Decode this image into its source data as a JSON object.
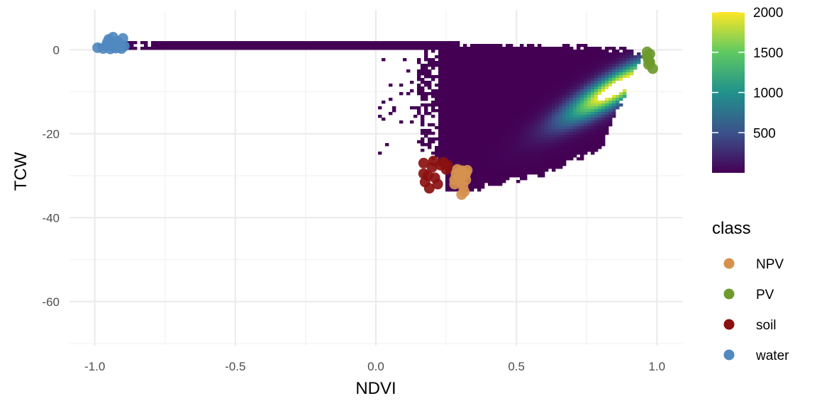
{
  "chart_data": {
    "type": "scatter",
    "title": "",
    "xlabel": "NDVI",
    "ylabel": "TCW",
    "xlim": [
      -1.09,
      1.09
    ],
    "ylim": [
      -70.5,
      9.5
    ],
    "x_ticks": [
      -1.0,
      -0.5,
      0.0,
      0.5,
      1.0
    ],
    "x_tick_labels": [
      "-1.0",
      "-0.5",
      "0.0",
      "0.5",
      "1.0"
    ],
    "y_ticks": [
      0,
      -20,
      -40,
      -60
    ],
    "y_tick_labels": [
      "0",
      "-20",
      "-40",
      "-60"
    ],
    "grid": true,
    "background_density": {
      "type": "heatmap",
      "description_colorscale": "viridis",
      "count_range": [
        1,
        2000
      ],
      "colorbar_ticks": [
        500,
        1000,
        1500,
        2000
      ],
      "colorbar_tick_labels": [
        "500",
        "1000",
        "1500",
        "2000"
      ],
      "stops": [
        "#440154",
        "#3b528b",
        "#21918c",
        "#5ec962",
        "#fde725"
      ],
      "overflow_color": "#ffffff"
    },
    "legend": {
      "title": "class",
      "placement": "right",
      "entries": [
        {
          "name": "NPV",
          "color": "#d6914f"
        },
        {
          "name": "PV",
          "color": "#6e9a2e"
        },
        {
          "name": "soil",
          "color": "#8b1010"
        },
        {
          "name": "water",
          "color": "#5088c0"
        }
      ]
    },
    "series": [
      {
        "name": "water",
        "color": "#5088c0",
        "points": [
          [
            -0.99,
            0.5
          ],
          [
            -0.97,
            0.3
          ],
          [
            -0.96,
            1.0
          ],
          [
            -0.95,
            2.5
          ],
          [
            -0.94,
            0.8
          ],
          [
            -0.935,
            3.0
          ],
          [
            -0.93,
            1.5
          ],
          [
            -0.925,
            0.4
          ],
          [
            -0.92,
            2.0
          ],
          [
            -0.915,
            0.6
          ],
          [
            -0.91,
            1.2
          ],
          [
            -0.905,
            0.3
          ],
          [
            -0.9,
            2.7
          ],
          [
            -0.895,
            0.9
          ],
          [
            -0.955,
            1.8
          ],
          [
            -0.945,
            0.2
          ]
        ]
      },
      {
        "name": "PV",
        "color": "#6e9a2e",
        "points": [
          [
            0.965,
            -0.5
          ],
          [
            0.965,
            -1.5
          ],
          [
            0.97,
            -2.5
          ],
          [
            0.97,
            -3.5
          ],
          [
            0.975,
            -1.0
          ],
          [
            0.975,
            -3.0
          ],
          [
            0.968,
            -2.0
          ],
          [
            0.985,
            -4.5
          ]
        ]
      },
      {
        "name": "soil",
        "color": "#8b1010",
        "points": [
          [
            0.17,
            -27.0
          ],
          [
            0.17,
            -29.5
          ],
          [
            0.175,
            -31.5
          ],
          [
            0.19,
            -33.0
          ],
          [
            0.2,
            -28.0
          ],
          [
            0.205,
            -26.5
          ],
          [
            0.21,
            -30.5
          ],
          [
            0.22,
            -32.0
          ],
          [
            0.23,
            -27.5
          ],
          [
            0.24,
            -26.8
          ],
          [
            0.25,
            -28.5
          ],
          [
            0.255,
            -27.5
          ],
          [
            0.185,
            -30.0
          ]
        ]
      },
      {
        "name": "NPV",
        "color": "#d6914f",
        "points": [
          [
            0.28,
            -31.0
          ],
          [
            0.28,
            -32.0
          ],
          [
            0.285,
            -29.5
          ],
          [
            0.29,
            -28.5
          ],
          [
            0.295,
            -30.5
          ],
          [
            0.3,
            -29.0
          ],
          [
            0.3,
            -31.5
          ],
          [
            0.305,
            -28.8
          ],
          [
            0.31,
            -30.0
          ],
          [
            0.31,
            -32.5
          ],
          [
            0.315,
            -33.8
          ],
          [
            0.32,
            -29.5
          ],
          [
            0.32,
            -31.0
          ],
          [
            0.325,
            -28.7
          ],
          [
            0.305,
            -34.5
          ]
        ]
      }
    ]
  }
}
